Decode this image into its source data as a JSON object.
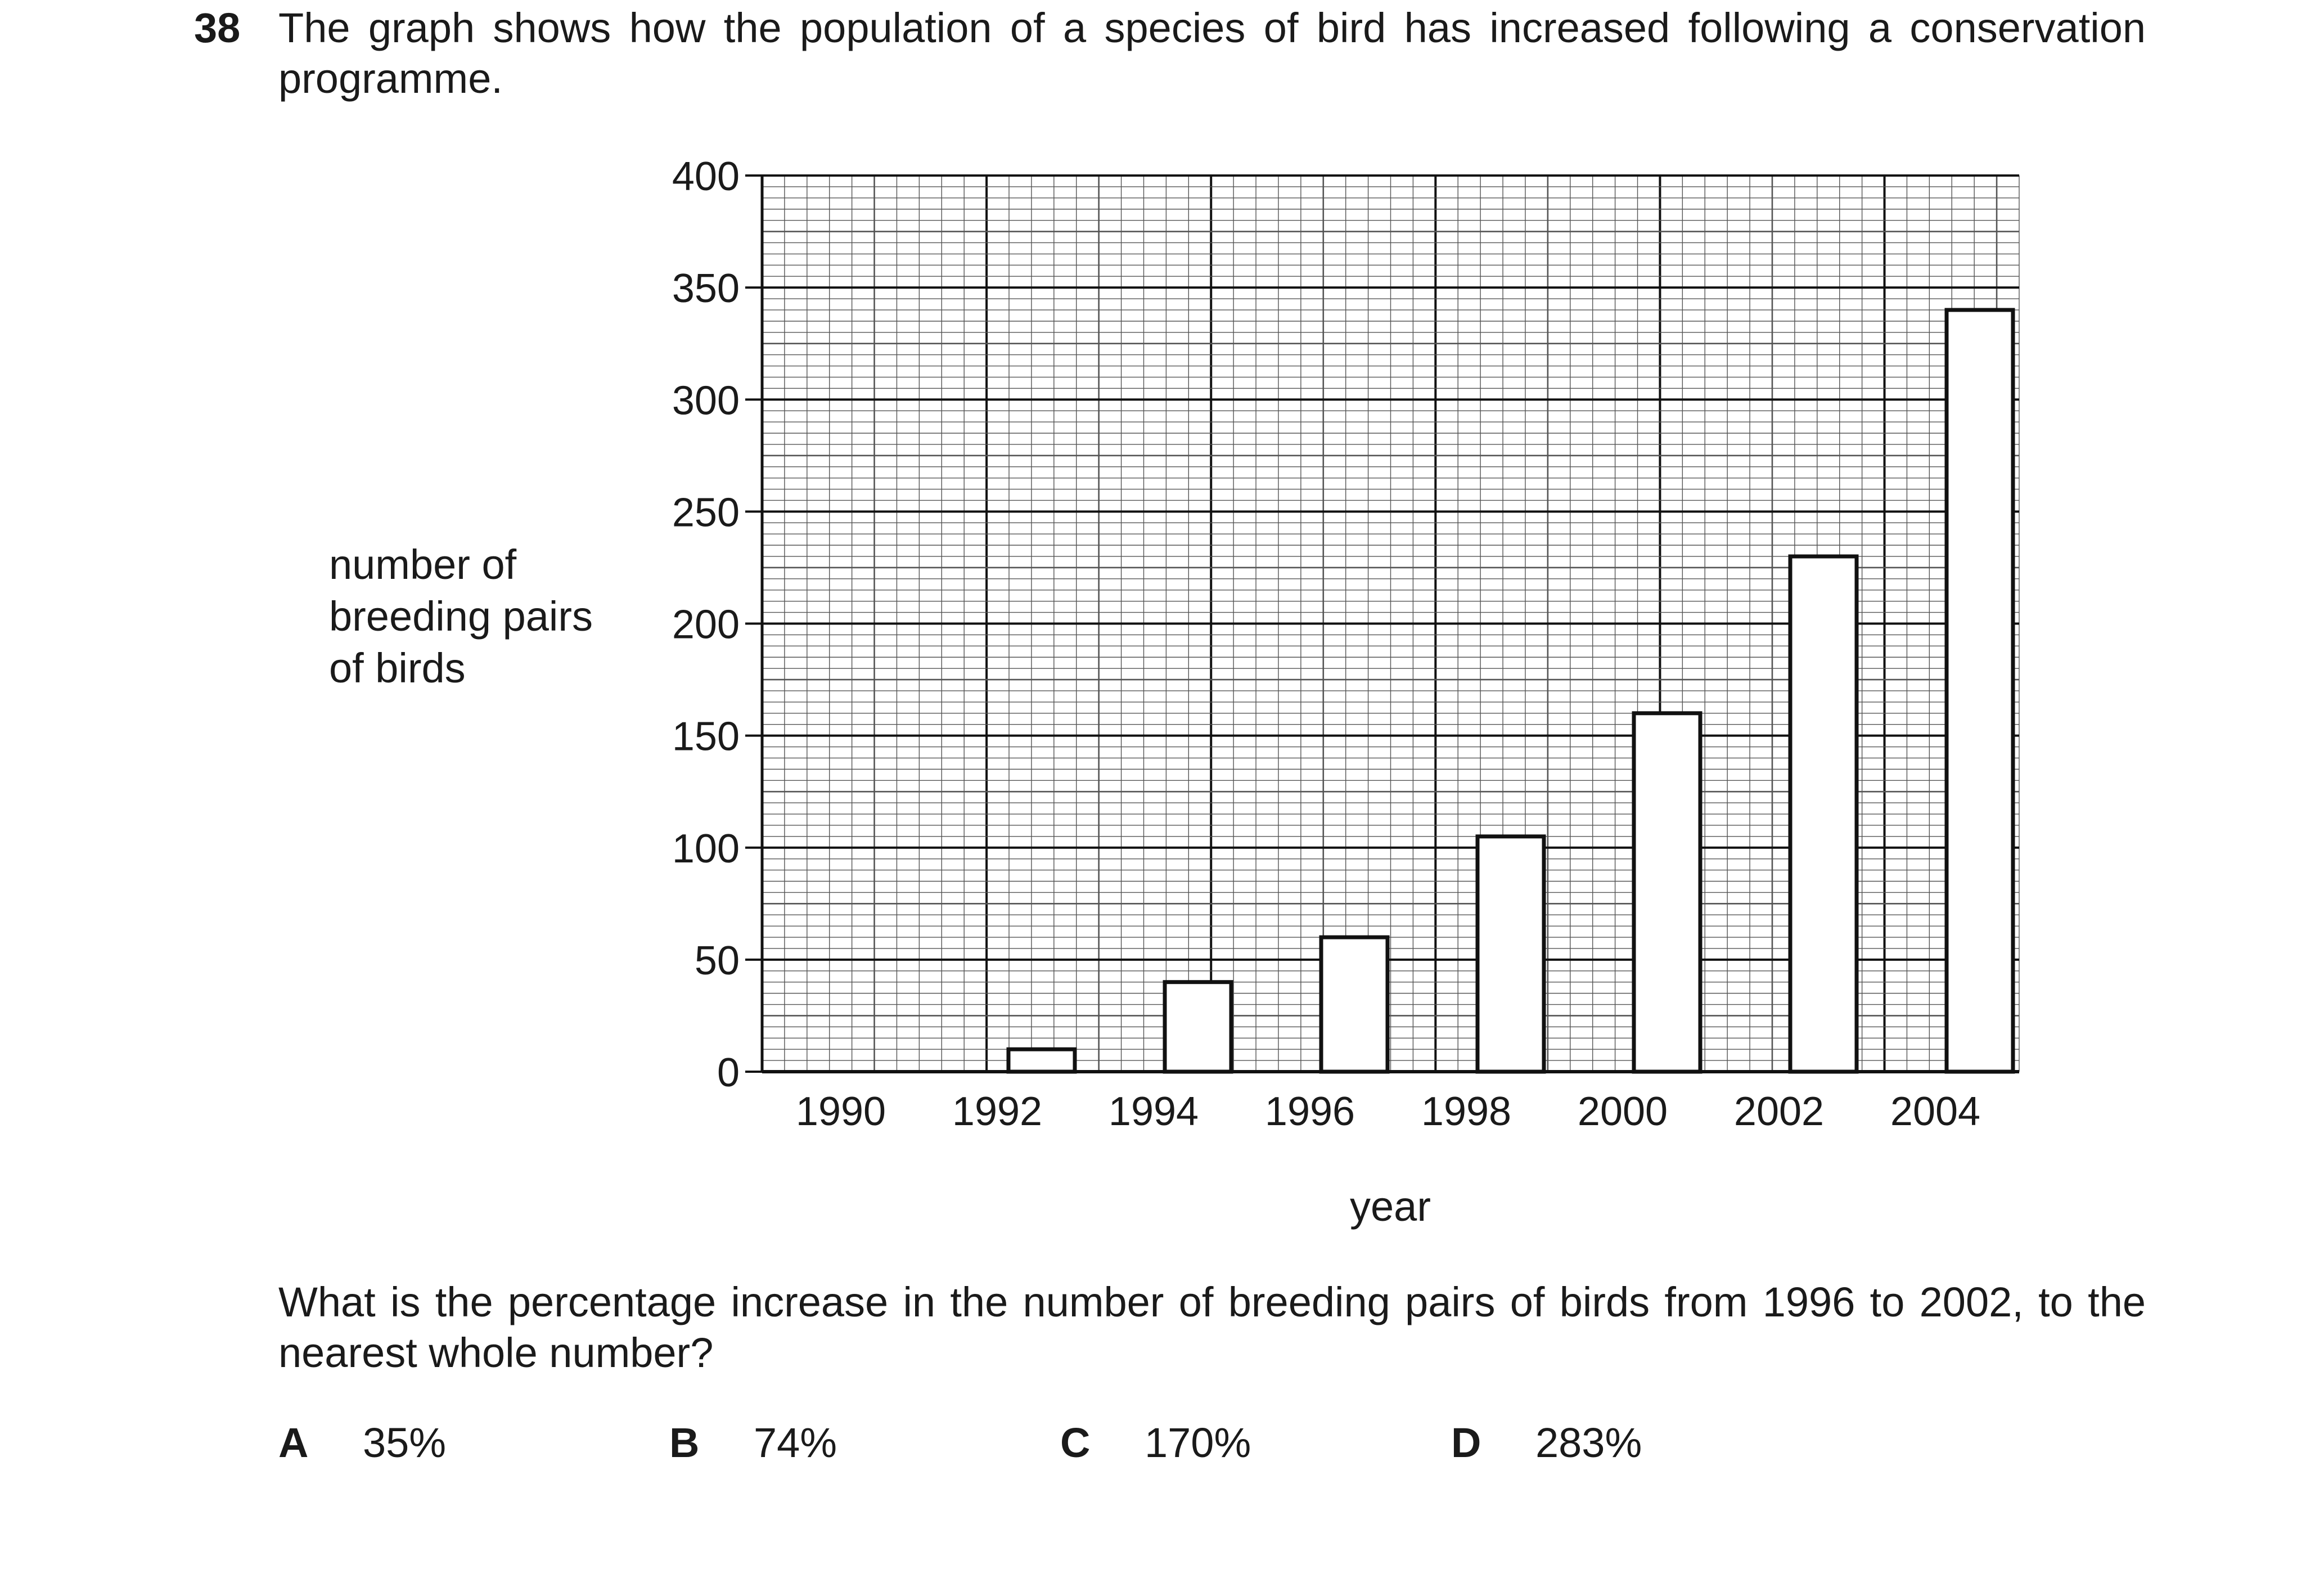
{
  "question": {
    "number": "38",
    "intro": "The graph shows how the population of a species of bird has increased following a conservation programme.",
    "prompt": "What is the percentage increase in the number of breeding pairs of birds from 1996 to 2002, to the nearest whole number?",
    "options": [
      {
        "letter": "A",
        "text": "35%"
      },
      {
        "letter": "B",
        "text": "74%"
      },
      {
        "letter": "C",
        "text": "170%"
      },
      {
        "letter": "D",
        "text": "283%"
      }
    ]
  },
  "chart_data": {
    "type": "bar",
    "categories": [
      "1990",
      "1992",
      "1994",
      "1996",
      "1998",
      "2000",
      "2002",
      "2004"
    ],
    "values": [
      0,
      10,
      40,
      60,
      105,
      160,
      230,
      340
    ],
    "xlabel": "year",
    "ylabel_lines": [
      "number of",
      "breeding pairs",
      "of birds"
    ],
    "ylim": [
      0,
      400
    ],
    "yticks": [
      0,
      50,
      100,
      150,
      200,
      250,
      300,
      350,
      400
    ],
    "grid": true,
    "colors": {
      "bar_fill": "#ffffff",
      "bar_stroke": "#111111",
      "grid_minor": "#555555",
      "grid_major": "#111111"
    }
  }
}
